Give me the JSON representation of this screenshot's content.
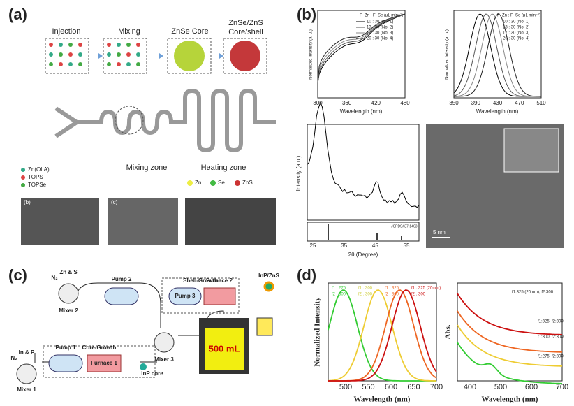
{
  "panels": {
    "a": {
      "label": "(a)",
      "stages": [
        "Injection",
        "Mixing",
        "ZnSe Core",
        "ZnSe/ZnS",
        "Core/shell"
      ],
      "zones": [
        "Mixing zone",
        "Heating zone"
      ],
      "reagents": [
        "Zn(OLA)",
        "TOPS",
        "TOPSe"
      ],
      "atoms": [
        "Zn",
        "Se",
        "ZnS"
      ],
      "insets": [
        "(b)",
        "(c)"
      ]
    },
    "b": {
      "label": "(b)",
      "abs": {
        "ylabel": "Normalized Intensity (a. u.)",
        "xlabel": "Wavelength (nm)",
        "xticks": [
          "300",
          "360",
          "420",
          "480"
        ]
      },
      "pl": {
        "ylabel": "Normalized Intensity (a. u.)",
        "xlabel": "Wavelength (nm)",
        "xticks": [
          "350",
          "390",
          "430",
          "470",
          "510"
        ]
      },
      "legend_header": "F_Zn : F_Se (μL min⁻¹)",
      "legend": [
        "10 : 30 (No. 1)",
        "13 : 30 (No. 2)",
        "17 : 30 (No. 3)",
        "20 : 30 (No. 4)"
      ],
      "xrd": {
        "ylabel": "Intensity (a.u.)",
        "xlabel": "2θ (Degree)",
        "xticks": [
          "25",
          "35",
          "45",
          "55"
        ],
        "ref": "JCPDS#37-1463"
      },
      "tem": {
        "scale": "5 nm"
      }
    },
    "c": {
      "label": "(c)",
      "texts": [
        "Zn & S",
        "N₂",
        "Pump 2",
        "Mixer 2",
        "Shell-Growth",
        "Pump 3",
        "Furnace 2",
        "InP/ZnS",
        "In & P",
        "N₂",
        "Pump 1",
        "Core-Growth",
        "Furnace 1",
        "Mixer 3",
        "InP core",
        "500 mL",
        "Mixer 1"
      ]
    },
    "d": {
      "label": "(d)",
      "pl": {
        "ylabel": "Normalized Intensity",
        "xlabel": "Wavelength (nm)",
        "xticks": [
          "500",
          "550",
          "600",
          "650",
          "700"
        ],
        "legend": [
          "f1 : 275",
          "f2 : 300",
          "f1 : 300",
          "f2 : 300",
          "f1 : 325",
          "f2 : 300",
          "f1 : 325 (20mm)",
          "f2 : 300"
        ]
      },
      "abs": {
        "ylabel": "Abs.",
        "xlabel": "Wavelength (nm)",
        "xticks": [
          "400",
          "500",
          "600",
          "700"
        ],
        "labels": [
          "f1:325 (20mm), f2:300",
          "f1:325, f2:300",
          "f1:300, f2:300",
          "f1:275, f2:300"
        ]
      }
    }
  }
}
